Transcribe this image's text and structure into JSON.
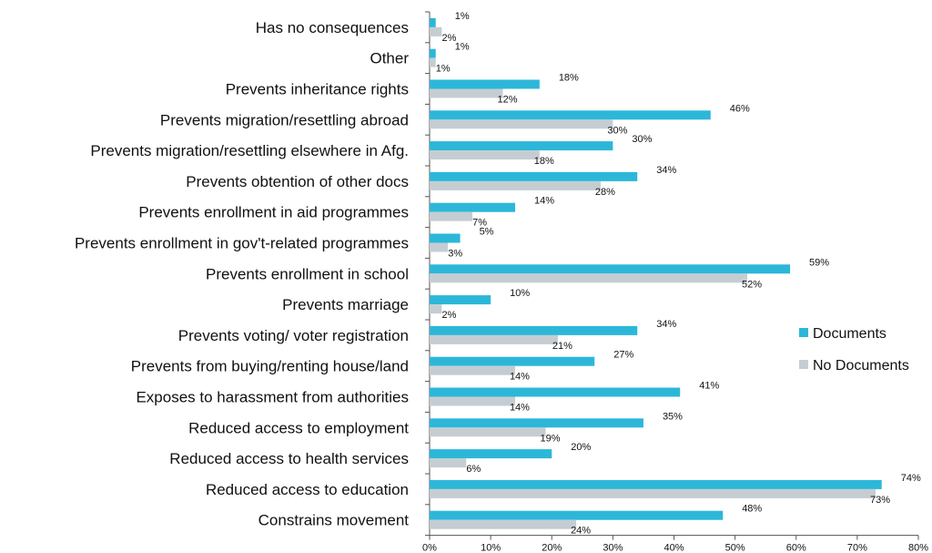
{
  "chart_data": {
    "type": "bar",
    "orientation": "horizontal",
    "categories": [
      "Has no consequences",
      "Other",
      "Prevents inheritance rights",
      "Prevents migration/resettling abroad",
      "Prevents migration/resettling elsewhere in Afg.",
      "Prevents obtention of other docs",
      "Prevents enrollment in aid programmes",
      "Prevents enrollment in gov't-related programmes",
      "Prevents enrollment in school",
      "Prevents marriage",
      "Prevents voting/ voter registration",
      "Prevents from buying/renting house/land",
      "Exposes to harassment from authorities",
      "Reduced access to employment",
      "Reduced access to health services",
      "Reduced access to education",
      "Constrains movement"
    ],
    "series": [
      {
        "name": "Documents",
        "color": "#2CB7D9",
        "values": [
          1,
          1,
          18,
          46,
          30,
          34,
          14,
          5,
          59,
          10,
          34,
          27,
          41,
          35,
          20,
          74,
          48
        ],
        "labels": [
          "1%",
          "1%",
          "18%",
          "46%",
          "30%",
          "34%",
          "14%",
          "5%",
          "59%",
          "10%",
          "34%",
          "27%",
          "41%",
          "35%",
          "20%",
          "74%",
          "48%"
        ]
      },
      {
        "name": "No Documents",
        "color": "#C5CDD3",
        "values": [
          2,
          1,
          12,
          30,
          18,
          28,
          7,
          3,
          52,
          2,
          21,
          14,
          14,
          19,
          6,
          73,
          24
        ],
        "labels": [
          "2%",
          "1%",
          "12%",
          "30%",
          "18%",
          "28%",
          "7%",
          "3%",
          "52%",
          "2%",
          "21%",
          "14%",
          "14%",
          "19%",
          "6%",
          "73%",
          "24%"
        ]
      }
    ],
    "xlim": [
      0,
      80
    ],
    "xticks": [
      "0%",
      "10%",
      "20%",
      "30%",
      "40%",
      "50%",
      "60%",
      "70%",
      "80%"
    ],
    "grid": false,
    "legend": "right",
    "title": "",
    "xlabel": "",
    "ylabel": ""
  }
}
